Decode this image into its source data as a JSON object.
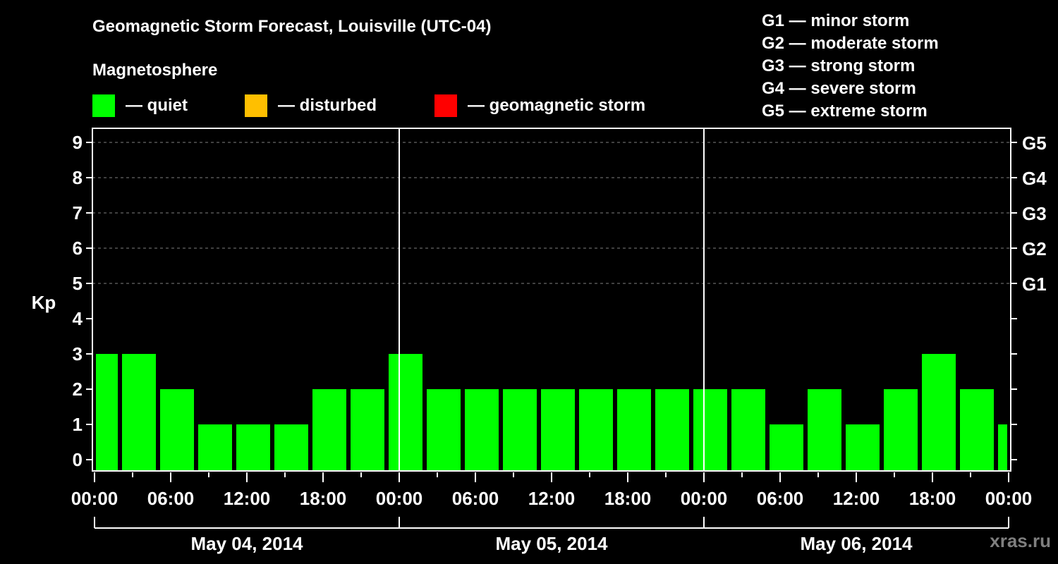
{
  "header": {
    "title": "Geomagnetic Storm Forecast, Louisville (UTC-04)",
    "subtitle": "Magnetosphere"
  },
  "legend": [
    {
      "label": "— quiet",
      "color": "#00ff00"
    },
    {
      "label": "— disturbed",
      "color": "#ffbf00"
    },
    {
      "label": "— geomagnetic storm",
      "color": "#ff0000"
    }
  ],
  "g_scale": [
    {
      "label": "G1 — minor storm"
    },
    {
      "label": "G2 — moderate storm"
    },
    {
      "label": "G3 — strong storm"
    },
    {
      "label": "G4 — severe storm"
    },
    {
      "label": "G5 — extreme storm"
    }
  ],
  "credit": "xras.ru",
  "chart_data": {
    "type": "bar",
    "title": "Geomagnetic Storm Forecast, Louisville (UTC-04)",
    "xlabel": "",
    "ylabel": "Kp",
    "ylim": [
      0,
      9
    ],
    "yticks": [
      0,
      1,
      2,
      3,
      4,
      5,
      6,
      7,
      8,
      9
    ],
    "right_axis_ticks": [
      {
        "kp": 5,
        "label": "G1"
      },
      {
        "kp": 6,
        "label": "G2"
      },
      {
        "kp": 7,
        "label": "G3"
      },
      {
        "kp": 8,
        "label": "G4"
      },
      {
        "kp": 9,
        "label": "G5"
      }
    ],
    "grid": "dashed horizontal at Kp 5-9",
    "xtick_labels": [
      "00:00",
      "06:00",
      "12:00",
      "18:00",
      "00:00",
      "06:00",
      "12:00",
      "18:00",
      "00:00",
      "06:00",
      "12:00",
      "18:00",
      "00:00"
    ],
    "days": [
      "May 04, 2014",
      "May 05, 2014",
      "May 06, 2014"
    ],
    "categories": [
      "May 04 00:00-02:00",
      "May 04 02:00-05:00",
      "May 04 05:00-08:00",
      "May 04 08:00-11:00",
      "May 04 11:00-14:00",
      "May 04 14:00-17:00",
      "May 04 17:00-20:00",
      "May 04 20:00-23:00",
      "May 04 23:00-02:00",
      "May 05 02:00-05:00",
      "May 05 05:00-08:00",
      "May 05 08:00-11:00",
      "May 05 11:00-14:00",
      "May 05 14:00-17:00",
      "May 05 17:00-20:00",
      "May 05 20:00-23:00",
      "May 05 23:00-02:00",
      "May 06 02:00-05:00",
      "May 06 05:00-08:00",
      "May 06 08:00-11:00",
      "May 06 11:00-14:00",
      "May 06 14:00-17:00",
      "May 06 17:00-20:00",
      "May 06 20:00-23:00",
      "May 06 23:00-00:00"
    ],
    "bar_start_hours": [
      0,
      2,
      5,
      8,
      11,
      14,
      17,
      20,
      23,
      26,
      29,
      32,
      35,
      38,
      41,
      44,
      47,
      50,
      53,
      56,
      59,
      62,
      65,
      68,
      71
    ],
    "bar_end_hours": [
      2,
      5,
      8,
      11,
      14,
      17,
      20,
      23,
      26,
      29,
      32,
      35,
      38,
      41,
      44,
      47,
      50,
      53,
      56,
      59,
      62,
      65,
      68,
      71,
      72
    ],
    "values": [
      3,
      3,
      2,
      1,
      1,
      1,
      2,
      2,
      3,
      2,
      2,
      2,
      2,
      2,
      2,
      2,
      2,
      2,
      1,
      2,
      1,
      2,
      3,
      2,
      1
    ],
    "series": [
      {
        "name": "Kp (quiet)",
        "color": "#00ff00",
        "values": [
          3,
          3,
          2,
          1,
          1,
          1,
          2,
          2,
          3,
          2,
          2,
          2,
          2,
          2,
          2,
          2,
          2,
          2,
          1,
          2,
          1,
          2,
          3,
          2,
          1
        ]
      }
    ]
  }
}
